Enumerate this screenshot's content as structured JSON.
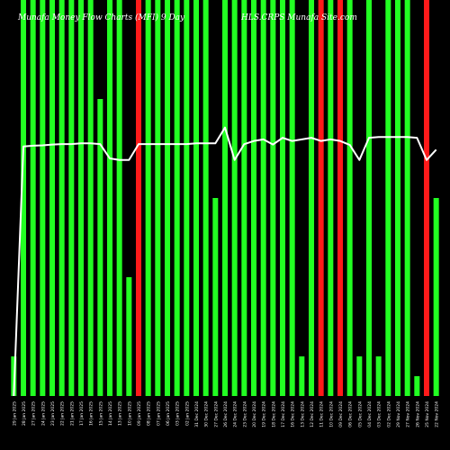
{
  "chart_data": {
    "type": "bar",
    "title": "Munafa Money Flow Charts (MFI) 9 Day",
    "subtitle": "HLS.CRPS Munafa Site.com",
    "bar_colors": {
      "up": "#22ff22",
      "down": "#ff1a1a"
    },
    "line_color": "#ffffff",
    "ylim": [
      0,
      100
    ],
    "categories": [
      "29 Jan 2025",
      "28 Jan 2025",
      "27 Jan 2025",
      "24 Jan 2025",
      "23 Jan 2025",
      "22 Jan 2025",
      "21 Jan 2025",
      "17 Jan 2025",
      "16 Jan 2025",
      "15 Jan 2025",
      "14 Jan 2025",
      "13 Jan 2025",
      "10 Jan 2025",
      "09 Jan 2025",
      "08 Jan 2025",
      "07 Jan 2025",
      "06 Jan 2025",
      "03 Jan 2025",
      "02 Jan 2025",
      "31 Dec 2024",
      "30 Dec 2024",
      "27 Dec 2024",
      "26 Dec 2024",
      "24 Dec 2024",
      "23 Dec 2024",
      "20 Dec 2024",
      "19 Dec 2024",
      "18 Dec 2024",
      "17 Dec 2024",
      "16 Dec 2024",
      "13 Dec 2024",
      "12 Dec 2024",
      "11 Dec 2024",
      "10 Dec 2024",
      "09 Dec 2024",
      "06 Dec 2024",
      "05 Dec 2024",
      "04 Dec 2024",
      "03 Dec 2024",
      "02 Dec 2024",
      "29 Nov 2024",
      "27 Nov 2024",
      "26 Nov 2024",
      "25 Nov 2024",
      "22 Nov 2024"
    ],
    "series": [
      {
        "values": [
          10,
          100,
          100,
          100,
          100,
          100,
          100,
          100,
          100,
          75,
          100,
          100,
          30,
          100,
          100,
          100,
          100,
          100,
          100,
          100,
          100,
          50,
          100,
          100,
          100,
          100,
          100,
          100,
          100,
          100,
          10,
          100,
          100,
          100,
          100,
          100,
          10,
          100,
          10,
          100,
          100,
          100,
          5,
          100,
          50
        ],
        "colors": [
          "up",
          "up",
          "up",
          "up",
          "up",
          "up",
          "up",
          "up",
          "up",
          "up",
          "up",
          "up",
          "up",
          "down",
          "up",
          "up",
          "up",
          "up",
          "up",
          "up",
          "up",
          "up",
          "up",
          "up",
          "up",
          "up",
          "up",
          "up",
          "up",
          "up",
          "up",
          "up",
          "down",
          "up",
          "down",
          "up",
          "up",
          "up",
          "up",
          "up",
          "up",
          "up",
          "up",
          "down",
          "up"
        ]
      },
      {
        "values": [
          0,
          63,
          63.2,
          63.3,
          63.5,
          63.6,
          63.6,
          63.8,
          63.8,
          63.6,
          60,
          59.6,
          59.6,
          63.6,
          63.6,
          63.6,
          63.6,
          63.6,
          63.6,
          63.8,
          63.8,
          63.8,
          67.8,
          59.6,
          63.6,
          64.4,
          64.8,
          63.5,
          65.2,
          64.4,
          64.8,
          65.2,
          64.4,
          64.8,
          64.4,
          63.4,
          59.6,
          65.2,
          65.4,
          65.4,
          65.4,
          65.4,
          65.2,
          59.6,
          62.2
        ]
      }
    ]
  }
}
